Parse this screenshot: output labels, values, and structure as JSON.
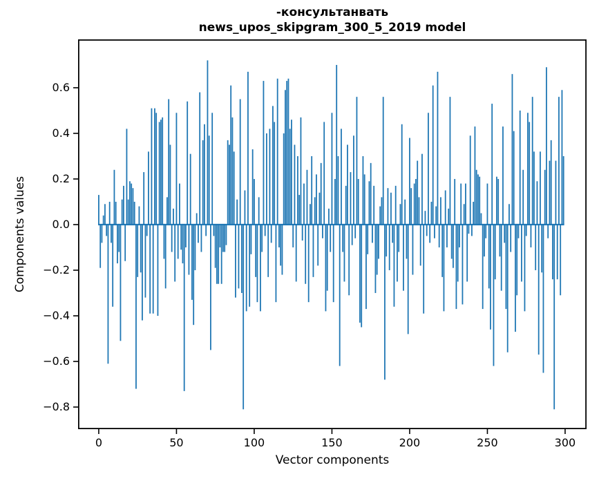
{
  "figure": {
    "title_line1": "-консультанвать",
    "title_line2": "news_upos_skipgram_300_5_2019 model"
  },
  "chart_data": {
    "type": "bar",
    "title": "-консультанвать\nnews_upos_skipgram_300_5_2019 model",
    "xlabel": "Vector components",
    "ylabel": "Components values",
    "legend": null,
    "grid": false,
    "bar_color": "#1f77b4",
    "background_color": "#ffffff",
    "spine_color": "#000000",
    "bar_width_data_units": 0.8,
    "x_start": 0,
    "n_bars": 300,
    "xlim": [
      -13.3,
      313.8
    ],
    "ylim": [
      -0.897,
      0.812
    ],
    "x_tick_values": [
      0,
      50,
      100,
      150,
      200,
      250,
      300
    ],
    "x_tick_labels": [
      "0",
      "50",
      "100",
      "150",
      "200",
      "250",
      "300"
    ],
    "y_tick_values": [
      0.6,
      0.4,
      0.2,
      0.0,
      -0.2,
      -0.4,
      -0.6,
      -0.8
    ],
    "y_tick_labels": [
      "0.6",
      "0.4",
      "0.2",
      "0.0",
      "−0.2",
      "−0.4",
      "−0.6",
      "−0.8"
    ],
    "values": [
      0.13,
      -0.19,
      -0.08,
      0.04,
      0.09,
      -0.05,
      -0.61,
      0.1,
      -0.08,
      -0.36,
      0.24,
      0.1,
      -0.17,
      -0.12,
      -0.51,
      0.11,
      0.17,
      -0.16,
      0.42,
      0.11,
      0.19,
      0.18,
      0.16,
      0.1,
      -0.72,
      -0.23,
      0.08,
      -0.21,
      -0.42,
      0.23,
      -0.32,
      -0.05,
      0.32,
      -0.39,
      0.51,
      -0.39,
      0.51,
      0.49,
      -0.4,
      0.45,
      0.46,
      0.47,
      -0.15,
      -0.28,
      0.12,
      0.55,
      0.35,
      -0.12,
      0.07,
      -0.25,
      0.49,
      -0.15,
      0.18,
      -0.11,
      -0.17,
      -0.73,
      -0.1,
      0.54,
      -0.22,
      0.31,
      -0.33,
      -0.44,
      -0.2,
      0.05,
      -0.08,
      0.58,
      -0.12,
      0.37,
      0.44,
      -0.05,
      0.72,
      0.39,
      -0.55,
      0.49,
      -0.05,
      -0.19,
      -0.26,
      -0.26,
      -0.1,
      -0.26,
      -0.12,
      -0.12,
      -0.09,
      0.37,
      0.35,
      0.61,
      0.47,
      0.32,
      -0.32,
      0.11,
      -0.28,
      0.55,
      -0.3,
      -0.81,
      0.15,
      -0.38,
      0.67,
      -0.36,
      -0.13,
      0.33,
      0.2,
      -0.23,
      -0.34,
      0.12,
      -0.38,
      -0.12,
      0.63,
      -0.05,
      0.4,
      -0.23,
      0.42,
      -0.08,
      0.52,
      0.45,
      -0.34,
      0.64,
      -0.1,
      -0.18,
      -0.22,
      0.4,
      0.59,
      0.63,
      0.64,
      0.42,
      0.46,
      -0.1,
      0.35,
      -0.25,
      0.3,
      0.13,
      0.47,
      -0.07,
      0.18,
      -0.26,
      0.24,
      -0.34,
      0.09,
      0.3,
      -0.23,
      0.12,
      0.22,
      -0.18,
      0.14,
      0.27,
      -0.06,
      0.45,
      -0.38,
      -0.29,
      0.07,
      -0.12,
      0.49,
      -0.34,
      0.2,
      0.7,
      0.3,
      -0.62,
      0.42,
      -0.12,
      -0.25,
      0.17,
      0.35,
      -0.31,
      0.23,
      -0.09,
      0.39,
      -0.06,
      0.56,
      0.2,
      -0.43,
      -0.45,
      0.3,
      0.22,
      -0.37,
      -0.13,
      0.19,
      0.27,
      -0.08,
      0.17,
      -0.3,
      -0.22,
      -0.15,
      0.08,
      0.12,
      0.56,
      -0.68,
      -0.14,
      0.16,
      -0.2,
      0.14,
      -0.08,
      -0.36,
      0.17,
      -0.25,
      -0.12,
      0.09,
      0.44,
      -0.29,
      0.11,
      -0.15,
      -0.48,
      0.38,
      0.16,
      -0.22,
      0.18,
      0.2,
      0.28,
      0.12,
      -0.18,
      0.31,
      -0.39,
      0.06,
      -0.05,
      0.49,
      -0.08,
      0.1,
      0.61,
      -0.06,
      0.08,
      0.67,
      -0.1,
      0.12,
      -0.23,
      -0.38,
      0.15,
      -0.1,
      0.07,
      0.56,
      -0.15,
      -0.19,
      0.2,
      -0.37,
      -0.25,
      -0.1,
      0.18,
      -0.35,
      0.09,
      0.18,
      -0.25,
      -0.04,
      0.39,
      -0.05,
      0.1,
      0.43,
      0.24,
      0.22,
      0.21,
      0.05,
      -0.37,
      -0.14,
      -0.06,
      0.18,
      -0.28,
      -0.46,
      0.53,
      -0.62,
      -0.24,
      0.21,
      0.2,
      -0.14,
      -0.29,
      0.43,
      -0.08,
      -0.37,
      -0.56,
      0.09,
      -0.12,
      0.66,
      0.41,
      -0.47,
      -0.31,
      -0.06,
      0.5,
      -0.25,
      0.24,
      -0.38,
      -0.05,
      0.49,
      0.45,
      -0.1,
      0.56,
      0.32,
      -0.2,
      0.19,
      -0.57,
      0.32,
      -0.21,
      -0.65,
      0.24,
      0.69,
      -0.06,
      0.28,
      0.37,
      -0.24,
      -0.81,
      0.28,
      -0.24,
      0.56,
      -0.31,
      0.59,
      0.3
    ]
  }
}
